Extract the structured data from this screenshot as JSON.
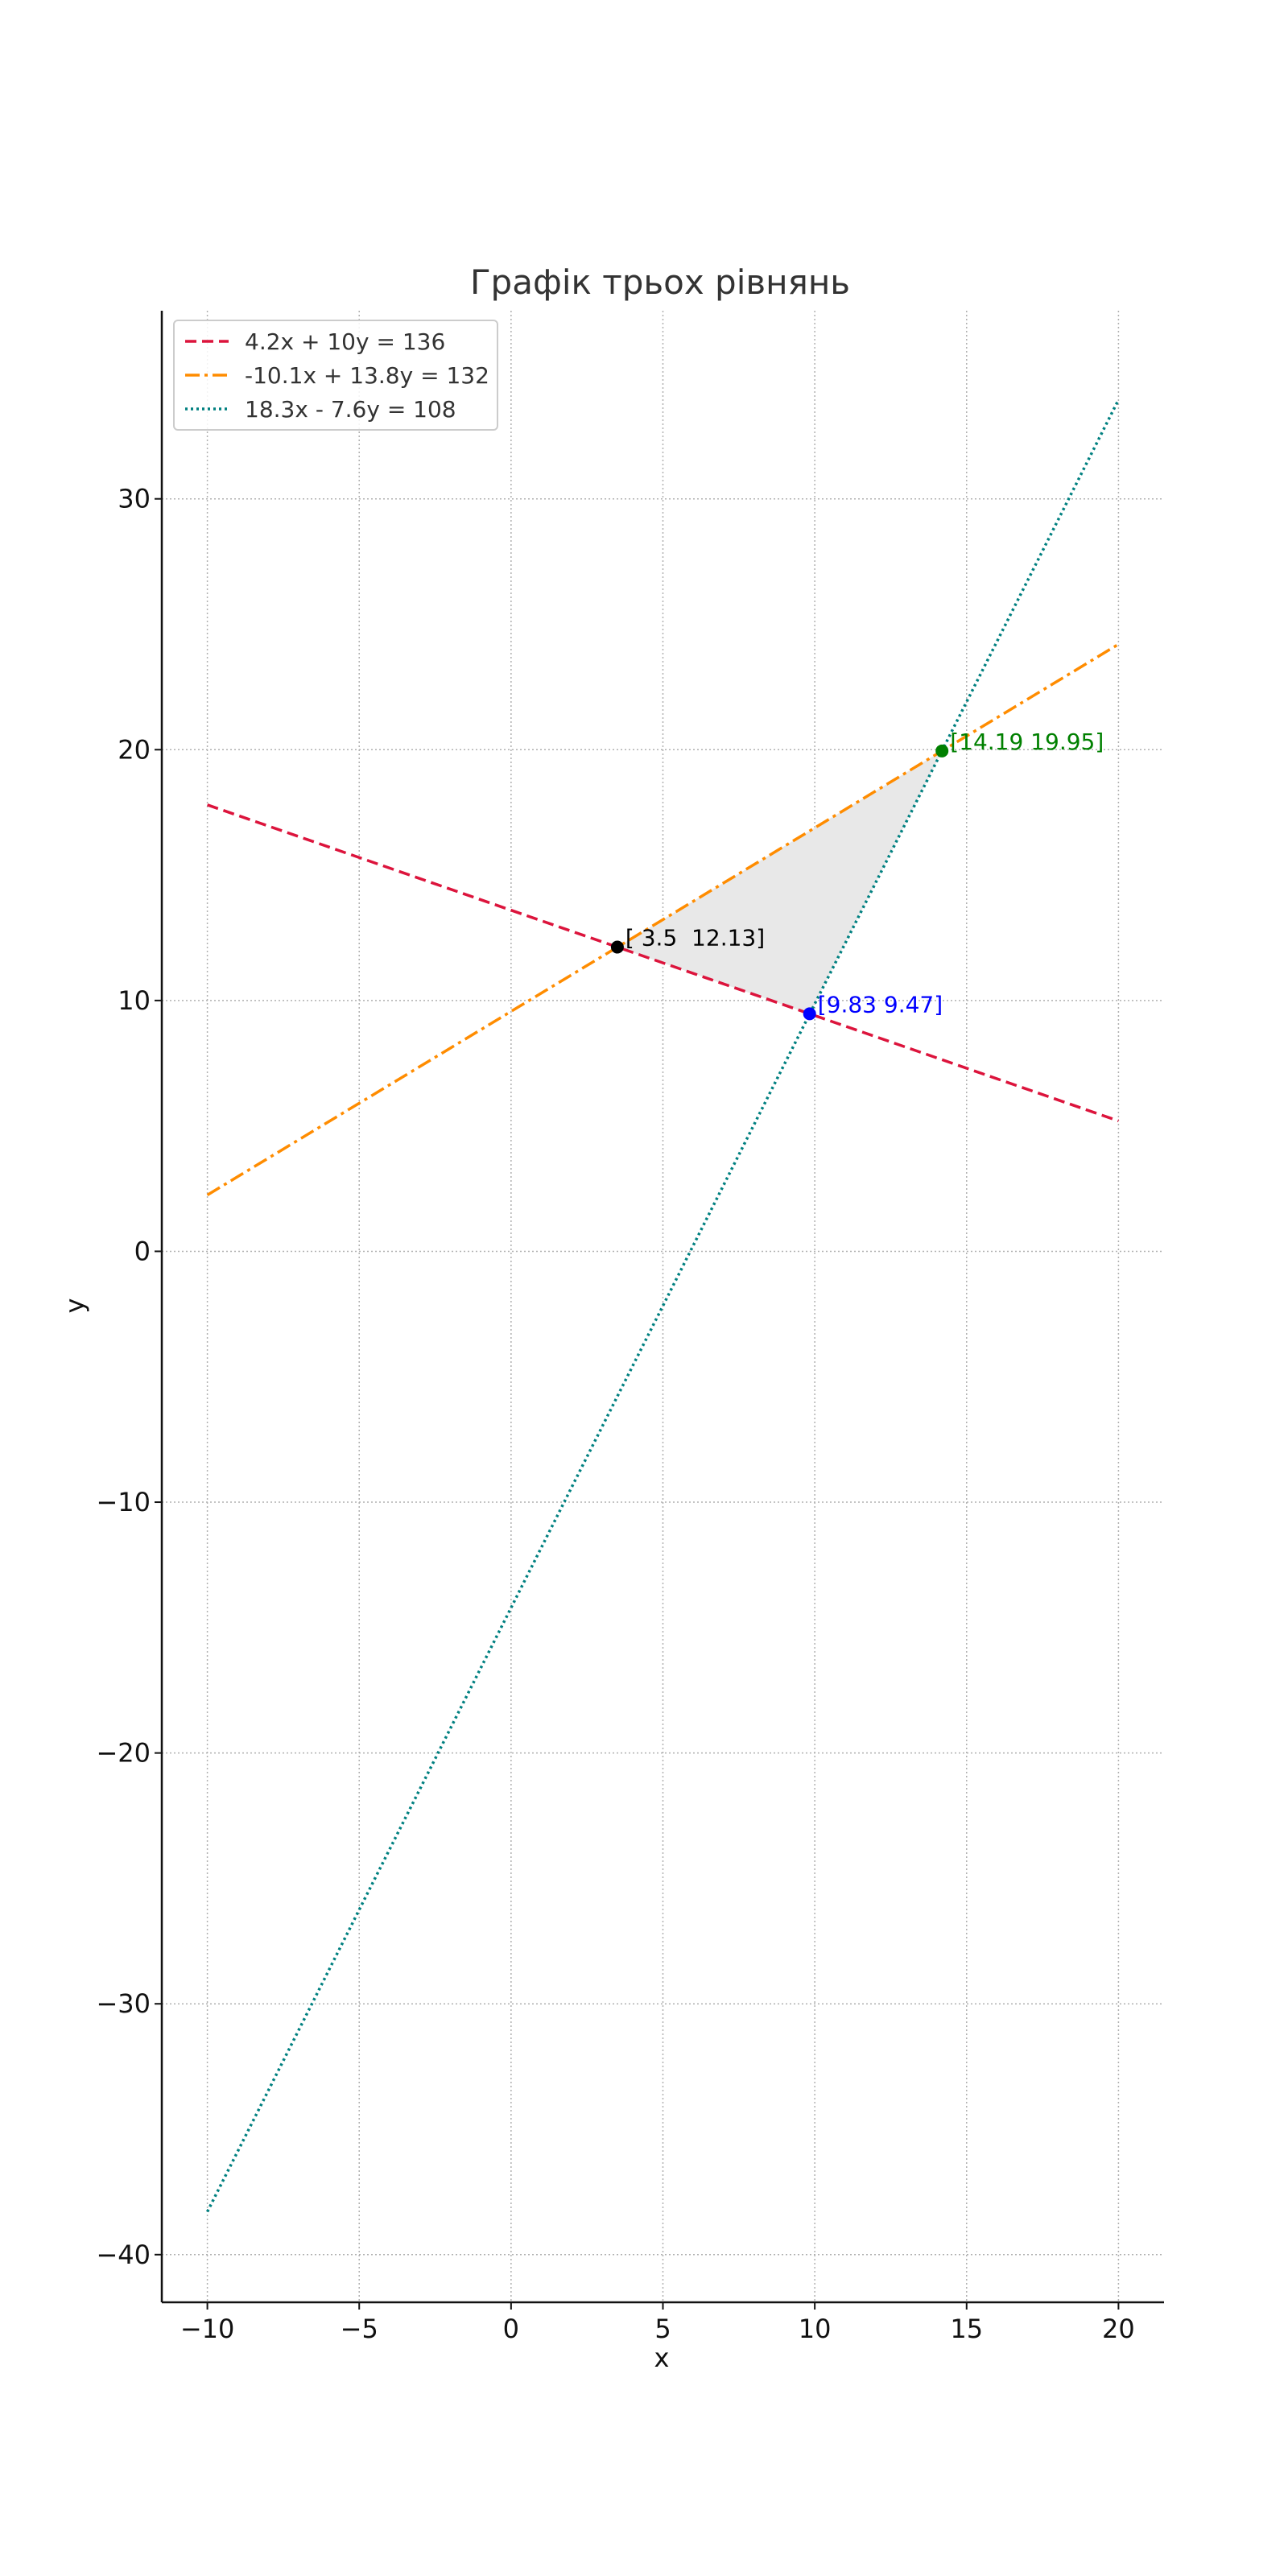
{
  "chart_data": {
    "type": "line",
    "title": "Графік трьох рівнянь",
    "xlabel": "x",
    "ylabel": "y",
    "xlim": [
      -11.5,
      21.5
    ],
    "ylim": [
      -41.9,
      37.5
    ],
    "xticks": [
      -10,
      -5,
      0,
      5,
      10,
      15,
      20
    ],
    "xtick_labels": [
      "−10",
      "−5",
      "0",
      "5",
      "10",
      "15",
      "20"
    ],
    "yticks": [
      -40,
      -30,
      -20,
      -10,
      0,
      10,
      20,
      30
    ],
    "ytick_labels": [
      "−40",
      "−30",
      "−20",
      "−10",
      "0",
      "10",
      "20",
      "30"
    ],
    "grid": true,
    "legend_position": "top-left",
    "series": [
      {
        "name": "4.2x + 10y = 136",
        "a": 4.2,
        "b": 10,
        "c": 136,
        "x_range": [
          -10,
          20
        ],
        "color": "#dc143c",
        "dash": "dashed"
      },
      {
        "name": "-10.1x + 13.8y = 132",
        "a": -10.1,
        "b": 13.8,
        "c": 132,
        "x_range": [
          -10,
          20
        ],
        "color": "#ff8c00",
        "dash": "dashdot"
      },
      {
        "name": "18.3x - 7.6y = 108",
        "a": 18.3,
        "b": -7.6,
        "c": 108,
        "x_range": [
          -10,
          20
        ],
        "color": "#008080",
        "dash": "dotted"
      }
    ],
    "points": [
      {
        "x": 3.5,
        "y": 12.13,
        "label": "[ 3.5  12.13]",
        "color": "#000000"
      },
      {
        "x": 9.83,
        "y": 9.47,
        "label": "[9.83 9.47]",
        "color": "#0000ff"
      },
      {
        "x": 14.19,
        "y": 19.95,
        "label": "[14.19 19.95]",
        "color": "#008000"
      }
    ],
    "shaded_region": {
      "vertices": [
        [
          3.5,
          12.13
        ],
        [
          9.83,
          9.47
        ],
        [
          14.19,
          19.95
        ]
      ],
      "color": "#e8e8e8"
    }
  }
}
